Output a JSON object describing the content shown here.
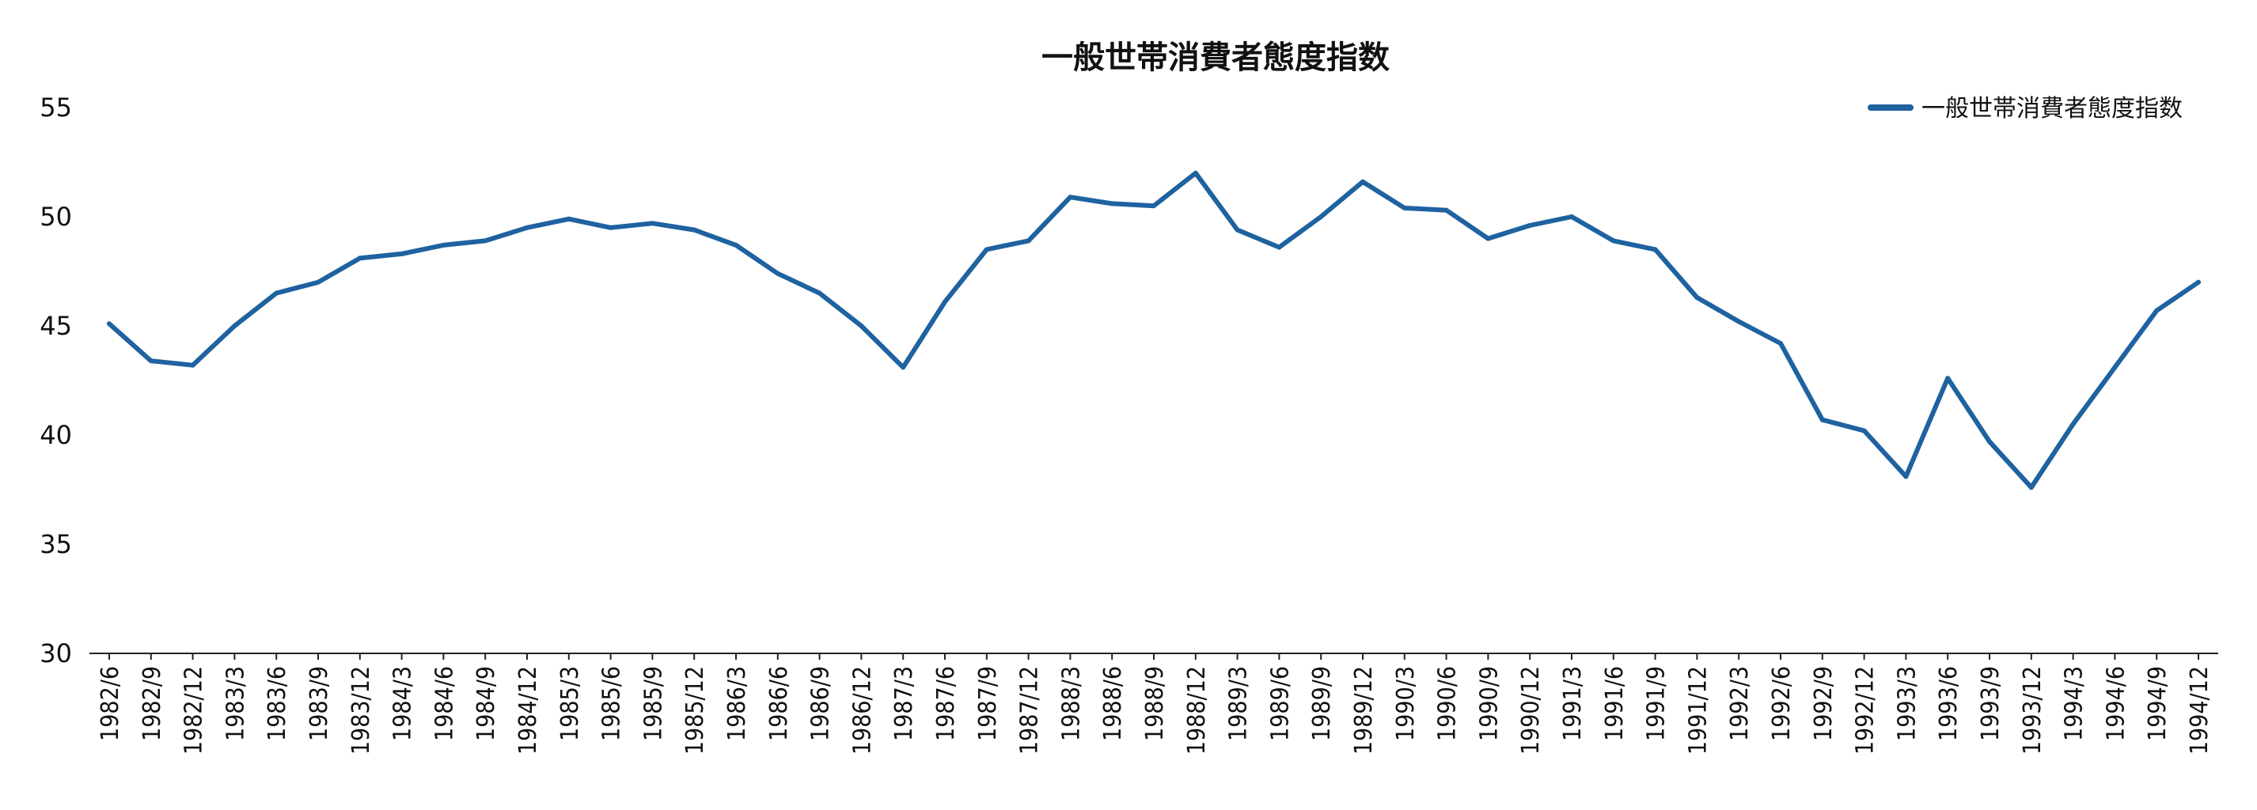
{
  "chart_data": {
    "type": "line",
    "title": "一般世帯消費者態度指数",
    "xlabel": "",
    "ylabel": "",
    "ylim": [
      30,
      55
    ],
    "yticks": [
      30,
      35,
      40,
      45,
      50,
      55
    ],
    "grid": false,
    "legend_position": "top-right",
    "categories": [
      "1982/6",
      "1982/9",
      "1982/12",
      "1983/3",
      "1983/6",
      "1983/9",
      "1983/12",
      "1984/3",
      "1984/6",
      "1984/9",
      "1984/12",
      "1985/3",
      "1985/6",
      "1985/9",
      "1985/12",
      "1986/3",
      "1986/6",
      "1986/9",
      "1986/12",
      "1987/3",
      "1987/6",
      "1987/9",
      "1987/12",
      "1988/3",
      "1988/6",
      "1988/9",
      "1988/12",
      "1989/3",
      "1989/6",
      "1989/9",
      "1989/12",
      "1990/3",
      "1990/6",
      "1990/9",
      "1990/12",
      "1991/3",
      "1991/6",
      "1991/9",
      "1991/12",
      "1992/3",
      "1992/6",
      "1992/9",
      "1992/12",
      "1993/3",
      "1993/6",
      "1993/9",
      "1993/12",
      "1994/3",
      "1994/6",
      "1994/9",
      "1994/12"
    ],
    "series": [
      {
        "name": "一般世帯消費者態度指数",
        "color": "#1f62a0",
        "values": [
          45.1,
          43.4,
          43.2,
          45.0,
          46.5,
          47.0,
          48.1,
          48.3,
          48.7,
          48.9,
          49.5,
          49.9,
          49.5,
          49.7,
          49.4,
          48.7,
          47.4,
          46.5,
          45.0,
          43.1,
          46.1,
          48.5,
          48.9,
          50.9,
          50.6,
          50.5,
          52.0,
          49.4,
          48.6,
          50.0,
          51.6,
          50.4,
          50.3,
          49.0,
          49.6,
          50.0,
          48.9,
          48.5,
          46.3,
          45.2,
          44.2,
          40.7,
          40.2,
          38.1,
          42.6,
          39.7,
          37.6,
          40.5,
          43.1,
          45.7,
          47.0
        ]
      }
    ]
  }
}
